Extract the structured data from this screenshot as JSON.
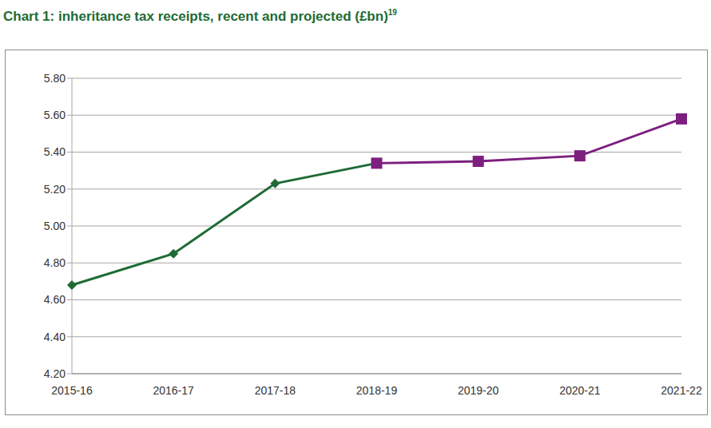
{
  "chart_data": {
    "type": "line",
    "title": "Chart 1: inheritance tax receipts, recent and projected (£bn)",
    "title_superscript": "19",
    "categories": [
      "2015-16",
      "2016-17",
      "2017-18",
      "2018-19",
      "2019-20",
      "2020-21",
      "2021-22"
    ],
    "series": [
      {
        "color": "#1e6b35",
        "marker": "diamond",
        "values": [
          4.68,
          4.85,
          5.23,
          5.34,
          null,
          null,
          null
        ]
      },
      {
        "color": "#7d1f7f",
        "marker": "square",
        "values": [
          null,
          null,
          null,
          5.34,
          5.35,
          5.38,
          5.58
        ]
      }
    ],
    "ylim": [
      4.2,
      5.8
    ],
    "yticks": [
      {
        "value": 4.2,
        "label": "4.20"
      },
      {
        "value": 4.4,
        "label": "4.40"
      },
      {
        "value": 4.6,
        "label": "4.60"
      },
      {
        "value": 4.8,
        "label": "4.80"
      },
      {
        "value": 5.0,
        "label": "5.00"
      },
      {
        "value": 5.2,
        "label": "5.20"
      },
      {
        "value": 5.4,
        "label": "5.40"
      },
      {
        "value": 5.6,
        "label": "5.60"
      },
      {
        "value": 5.8,
        "label": "5.80"
      }
    ],
    "grid": true
  }
}
